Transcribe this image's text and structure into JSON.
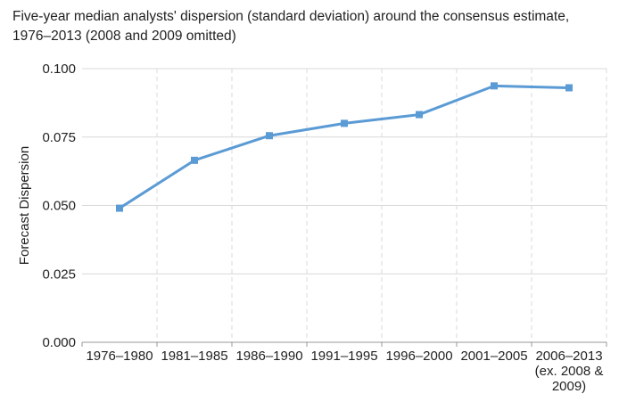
{
  "chart_data": {
    "type": "line",
    "title": "Five-year median analysts' dispersion (standard deviation) around the consensus estimate, 1976–2013 (2008 and 2009 omitted)",
    "ylabel": "Forecast Dispersion",
    "xlabel": "",
    "categories": [
      [
        "1976–1980"
      ],
      [
        "1981–1985"
      ],
      [
        "1986–1990"
      ],
      [
        "1991–1995"
      ],
      [
        "1996–2000"
      ],
      [
        "2001–2005"
      ],
      [
        "2006–2013",
        "(ex. 2008 &",
        "2009)"
      ]
    ],
    "series": [
      {
        "values": [
          0.049,
          0.0665,
          0.0755,
          0.08,
          0.0832,
          0.0937,
          0.093
        ]
      }
    ],
    "ylim": [
      0,
      0.1
    ],
    "yticks": [
      "0.000",
      "0.025",
      "0.050",
      "0.075",
      "0.100"
    ],
    "ytick_values": [
      0,
      0.025,
      0.05,
      0.075,
      0.1
    ],
    "grid": true,
    "colors": {
      "line": "#5b9bd5",
      "grid": "#d9d9d9",
      "axis": "#999999"
    }
  }
}
